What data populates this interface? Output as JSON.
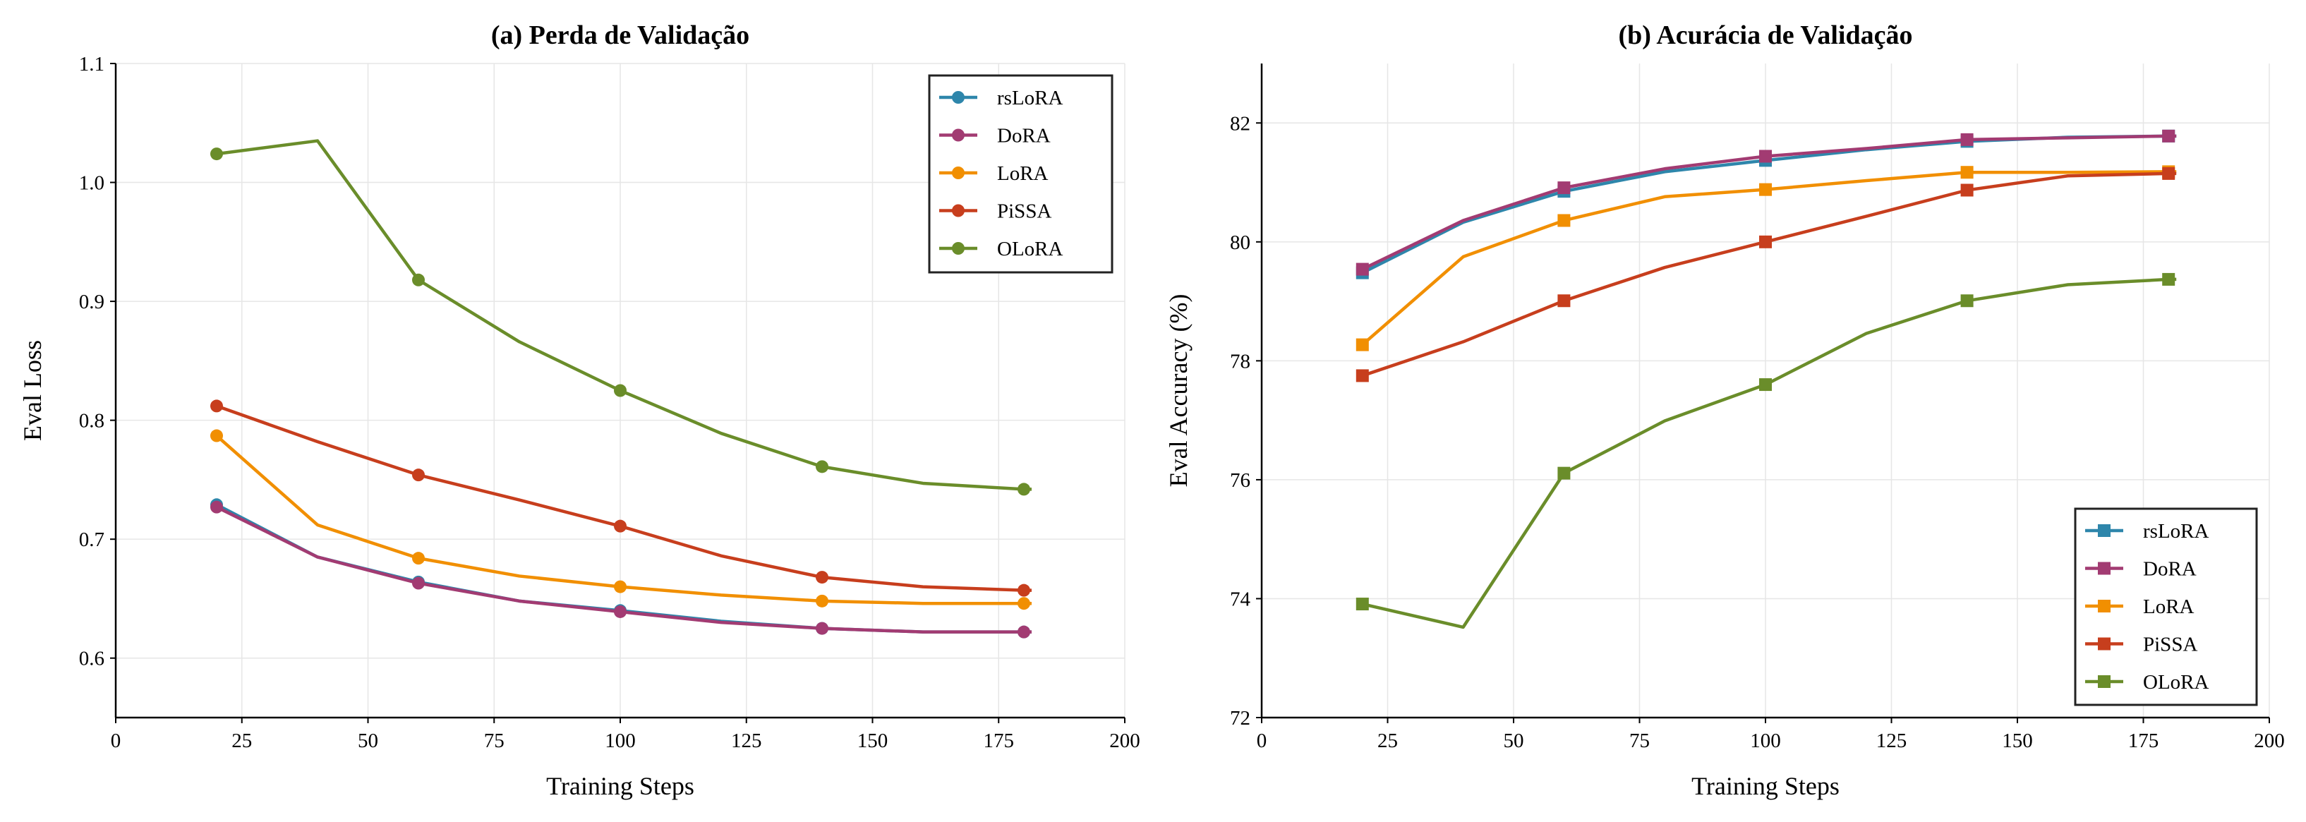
{
  "chart_data": [
    {
      "type": "line",
      "title": "(a) Perda de Validação",
      "xlabel": "Training Steps",
      "ylabel": "Eval Loss",
      "xlim": [
        0,
        200
      ],
      "ylim": [
        0.55,
        1.1
      ],
      "xticks": [
        "0",
        "25",
        "50",
        "75",
        "100",
        "125",
        "150",
        "175",
        "200"
      ],
      "yticks": [
        "0.6",
        "0.7",
        "0.8",
        "0.9",
        "1.0",
        "1.1"
      ],
      "grid": true,
      "legend_position": "top-right",
      "marker": "circle",
      "x": [
        20,
        40,
        60,
        80,
        100,
        120,
        140,
        160,
        180
      ],
      "marker_x": [
        20,
        60,
        100,
        140,
        180
      ],
      "series": [
        {
          "name": "rsLoRA",
          "color": "#2e86ab",
          "values": [
            0.729,
            0.685,
            0.664,
            0.648,
            0.64,
            0.631,
            0.625,
            0.622,
            0.622
          ]
        },
        {
          "name": "DoRA",
          "color": "#a23b72",
          "values": [
            0.727,
            0.685,
            0.663,
            0.648,
            0.639,
            0.63,
            0.625,
            0.622,
            0.622
          ]
        },
        {
          "name": "LoRA",
          "color": "#f18f01",
          "values": [
            0.787,
            0.712,
            0.684,
            0.669,
            0.66,
            0.653,
            0.648,
            0.646,
            0.646
          ]
        },
        {
          "name": "PiSSA",
          "color": "#c73e1d",
          "values": [
            0.812,
            0.782,
            0.754,
            0.733,
            0.711,
            0.686,
            0.668,
            0.66,
            0.657
          ]
        },
        {
          "name": "OLoRA",
          "color": "#6a8d2a",
          "values": [
            1.024,
            1.035,
            0.918,
            0.866,
            0.825,
            0.789,
            0.761,
            0.747,
            0.742
          ]
        }
      ]
    },
    {
      "type": "line",
      "title": "(b) Acurácia de Validação",
      "xlabel": "Training Steps",
      "ylabel": "Eval Accuracy (%)",
      "xlim": [
        0,
        200
      ],
      "ylim": [
        72,
        83
      ],
      "xticks": [
        "0",
        "25",
        "50",
        "75",
        "100",
        "125",
        "150",
        "175",
        "200"
      ],
      "yticks": [
        "72",
        "74",
        "76",
        "78",
        "80",
        "82"
      ],
      "grid": true,
      "legend_position": "bottom-right",
      "marker": "square",
      "x": [
        20,
        40,
        60,
        80,
        100,
        120,
        140,
        160,
        180
      ],
      "marker_x": [
        20,
        60,
        100,
        140,
        180
      ],
      "series": [
        {
          "name": "rsLoRA",
          "color": "#2e86ab",
          "values": [
            79.48,
            80.33,
            80.85,
            81.18,
            81.37,
            81.55,
            81.69,
            81.76,
            81.78
          ]
        },
        {
          "name": "DoRA",
          "color": "#a23b72",
          "values": [
            79.54,
            80.36,
            80.91,
            81.23,
            81.44,
            81.57,
            81.72,
            81.75,
            81.78
          ]
        },
        {
          "name": "LoRA",
          "color": "#f18f01",
          "values": [
            78.27,
            79.75,
            80.36,
            80.76,
            80.88,
            81.03,
            81.17,
            81.17,
            81.18
          ]
        },
        {
          "name": "PiSSA",
          "color": "#c73e1d",
          "values": [
            77.75,
            78.32,
            79.01,
            79.57,
            80.0,
            80.43,
            80.87,
            81.11,
            81.15
          ]
        },
        {
          "name": "OLoRA",
          "color": "#6a8d2a",
          "values": [
            73.91,
            73.52,
            76.11,
            76.99,
            77.6,
            78.46,
            79.01,
            79.28,
            79.37
          ]
        }
      ]
    }
  ]
}
